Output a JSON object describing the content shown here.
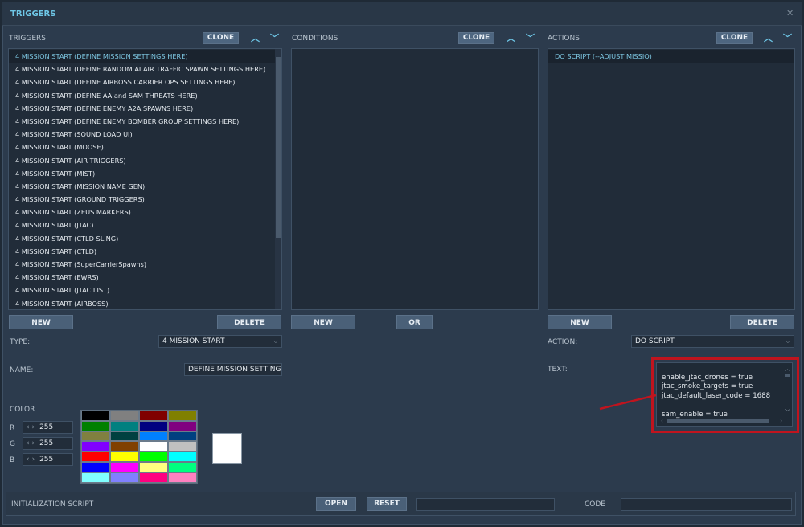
{
  "window": {
    "title": "TRIGGERS",
    "close_icon": "close-icon"
  },
  "triggers": {
    "label": "TRIGGERS",
    "clone": "CLONE",
    "items": [
      "4 MISSION START (DEFINE MISSION SETTINGS HERE)",
      "4 MISSION START (DEFINE RANDOM AI AIR TRAFFIC SPAWN SETTINGS HERE)",
      "4 MISSION START (DEFINE AIRBOSS CARRIER OPS SETTINGS HERE)",
      "4 MISSION START (DEFINE AA and SAM THREATS HERE)",
      "4 MISSION START (DEFINE ENEMY A2A SPAWNS HERE)",
      "4 MISSION START (DEFINE ENEMY BOMBER GROUP SETTINGS HERE)",
      "4 MISSION START (SOUND LOAD UI)",
      "4 MISSION START (MOOSE)",
      "4 MISSION START (AIR TRIGGERS)",
      "4 MISSION START (MIST)",
      "4 MISSION START (MISSION NAME GEN)",
      "4 MISSION START (GROUND TRIGGERS)",
      "4 MISSION START (ZEUS MARKERS)",
      "4 MISSION START (JTAC)",
      "4 MISSION START (CTLD SLING)",
      "4 MISSION START (CTLD)",
      "4 MISSION START (SuperCarrierSpawns)",
      "4 MISSION START (EWRS)",
      "4 MISSION START (JTAC LIST)",
      "4 MISSION START (AIRBOSS)"
    ],
    "new": "NEW",
    "delete": "DELETE",
    "type_label": "TYPE:",
    "type_value": "4 MISSION START",
    "name_label": "NAME:",
    "name_value": "DEFINE MISSION SETTINGS"
  },
  "conditions": {
    "label": "CONDITIONS",
    "clone": "CLONE",
    "new": "NEW",
    "or": "OR"
  },
  "actions": {
    "label": "ACTIONS",
    "clone": "CLONE",
    "items": [
      "DO SCRIPT (--ADJUST MISSIO)"
    ],
    "new": "NEW",
    "delete": "DELETE",
    "action_label": "ACTION:",
    "action_value": "DO SCRIPT",
    "text_label": "TEXT:",
    "text_value": "enable_jtac_drones = true\njtac_smoke_targets = true\njtac_default_laser_code = 1688\n\nsam_enable = true"
  },
  "color": {
    "label": "COLOR",
    "r_label": "R",
    "g_label": "G",
    "b_label": "B",
    "r": "255",
    "g": "255",
    "b": "255",
    "selected": "#ffffff",
    "palette": [
      "#000000",
      "#808080",
      "#800000",
      "#808000",
      "#008000",
      "#008080",
      "#000080",
      "#800080",
      "#808040",
      "#004040",
      "#0080ff",
      "#004080",
      "#8000ff",
      "#804000",
      "#ffffff",
      "#c0c0c0",
      "#ff0000",
      "#ffff00",
      "#00ff00",
      "#00ffff",
      "#0000ff",
      "#ff00ff",
      "#ffff80",
      "#00ff80",
      "#80ffff",
      "#8080ff",
      "#ff0080",
      "#ff80c0"
    ]
  },
  "init": {
    "label": "INITIALIZATION SCRIPT",
    "open": "OPEN",
    "reset": "RESET",
    "code_label": "CODE"
  },
  "annotation": {
    "color": "#c0141e"
  }
}
